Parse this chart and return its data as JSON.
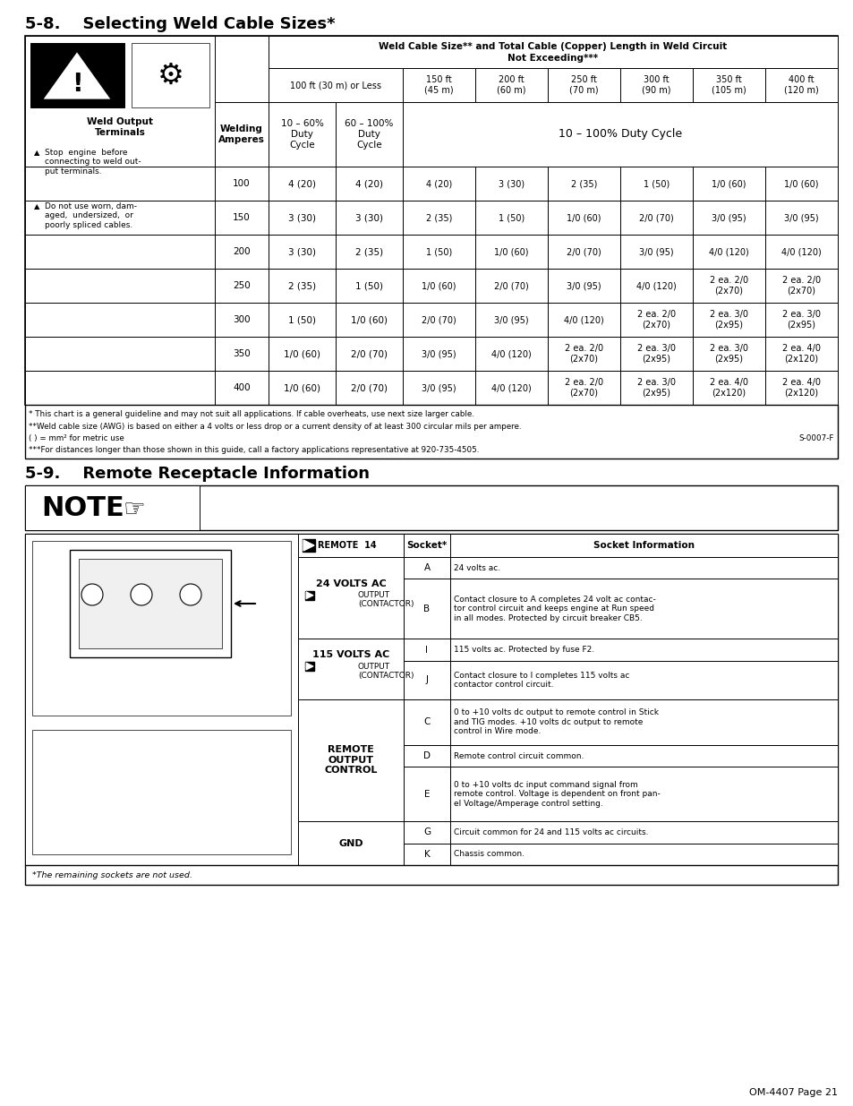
{
  "title1": "5-8.    Selecting Weld Cable Sizes*",
  "title2": "5-9.    Remote Receptacle Information",
  "page_footer": "OM-4407 Page 21",
  "table1_header1": "Weld Cable Size** and Total Cable (Copper) Length in Weld Circuit",
  "table1_header2": "Not Exceeding***",
  "duty_cycle_label": "10 – 100% Duty Cycle",
  "sub_col_header1": "10 – 60%\nDuty\nCycle",
  "sub_col_header2": "60 – 100%\nDuty\nCycle",
  "welding_amperes_label": "Welding\nAmperes",
  "col_100ft": "100 ft (30 m) or Less",
  "dist_cols": [
    "150 ft\n(45 m)",
    "200 ft\n(60 m)",
    "250 ft\n(70 m)",
    "300 ft\n(90 m)",
    "350 ft\n(105 m)",
    "400 ft\n(120 m)"
  ],
  "amp_rows": [
    100,
    150,
    200,
    250,
    300,
    350,
    400
  ],
  "table_data": [
    [
      "4 (20)",
      "4 (20)",
      "4 (20)",
      "3 (30)",
      "2 (35)",
      "1 (50)",
      "1/0 (60)",
      "1/0 (60)"
    ],
    [
      "3 (30)",
      "3 (30)",
      "2 (35)",
      "1 (50)",
      "1/0 (60)",
      "2/0 (70)",
      "3/0 (95)",
      "3/0 (95)"
    ],
    [
      "3 (30)",
      "2 (35)",
      "1 (50)",
      "1/0 (60)",
      "2/0 (70)",
      "3/0 (95)",
      "4/0 (120)",
      "4/0 (120)"
    ],
    [
      "2 (35)",
      "1 (50)",
      "1/0 (60)",
      "2/0 (70)",
      "3/0 (95)",
      "4/0 (120)",
      "2 ea. 2/0\n(2x70)",
      "2 ea. 2/0\n(2x70)"
    ],
    [
      "1 (50)",
      "1/0 (60)",
      "2/0 (70)",
      "3/0 (95)",
      "4/0 (120)",
      "2 ea. 2/0\n(2x70)",
      "2 ea. 3/0\n(2x95)",
      "2 ea. 3/0\n(2x95)"
    ],
    [
      "1/0 (60)",
      "2/0 (70)",
      "3/0 (95)",
      "4/0 (120)",
      "2 ea. 2/0\n(2x70)",
      "2 ea. 3/0\n(2x95)",
      "2 ea. 3/0\n(2x95)",
      "2 ea. 4/0\n(2x120)"
    ],
    [
      "1/0 (60)",
      "2/0 (70)",
      "3/0 (95)",
      "4/0 (120)",
      "2 ea. 2/0\n(2x70)",
      "2 ea. 3/0\n(2x95)",
      "2 ea. 4/0\n(2x120)",
      "2 ea. 4/0\n(2x120)"
    ]
  ],
  "footnote1": "* This chart is a general guideline and may not suit all applications. If cable overheats, use next size larger cable.",
  "footnote2": "**Weld cable size (AWG) is based on either a 4 volts or less drop or a current density of at least 300 circular mils per ampere.",
  "footnote3": "( ) = mm² for metric use",
  "footnote4": "S-0007-F",
  "footnote5": "***For distances longer than those shown in this guide, call a factory applications representative at 920-735-4505.",
  "weld_output_line1": "Weld Output",
  "weld_output_line2": "Terminals",
  "warn1_tri": "▲",
  "warn1_text": "Stop  engine  before\nconnecting to weld out-\nput terminals.",
  "warn2_tri": "▲",
  "warn2_text": "Do not use worn, dam-\naged,  undersized,  or\npoorly spliced cables.",
  "remote_label": "REMOTE  14",
  "socket_header": "Socket*",
  "socket_info_header": "Socket Information",
  "remote_groups": [
    {
      "label_line1": "24 VOLTS AC",
      "label_line2": "OUTPUT",
      "label_line3": "(CONTACTOR)",
      "has_arrow": true,
      "rows": [
        {
          "socket": "A",
          "info": "24 volts ac."
        },
        {
          "socket": "B",
          "info": "Contact closure to A completes 24 volt ac contac-\ntor control circuit and keeps engine at Run speed\nin all modes. Protected by circuit breaker CB5."
        }
      ]
    },
    {
      "label_line1": "115 VOLTS AC",
      "label_line2": "OUTPUT",
      "label_line3": "(CONTACTOR)",
      "has_arrow": true,
      "rows": [
        {
          "socket": "I",
          "info": "115 volts ac. Protected by fuse F2."
        },
        {
          "socket": "J",
          "info": "Contact closure to I completes 115 volts ac\ncontactor control circuit."
        }
      ]
    },
    {
      "label_line1": "REMOTE",
      "label_line2": "OUTPUT",
      "label_line3": "CONTROL",
      "has_arrow": false,
      "rows": [
        {
          "socket": "C",
          "info": "0 to +10 volts dc output to remote control in Stick\nand TIG modes. +10 volts dc output to remote\ncontrol in Wire mode."
        },
        {
          "socket": "D",
          "info": "Remote control circuit common."
        },
        {
          "socket": "E",
          "info": "0 to +10 volts dc input command signal from\nremote control. Voltage is dependent on front pan-\nel Voltage/Amperage control setting."
        }
      ]
    },
    {
      "label_line1": "GND",
      "label_line2": "",
      "label_line3": "",
      "has_arrow": false,
      "rows": [
        {
          "socket": "G",
          "info": "Circuit common for 24 and 115 volts ac circuits."
        },
        {
          "socket": "K",
          "info": "Chassis common."
        }
      ]
    }
  ],
  "remaining_sockets": "*The remaining sockets are not used."
}
